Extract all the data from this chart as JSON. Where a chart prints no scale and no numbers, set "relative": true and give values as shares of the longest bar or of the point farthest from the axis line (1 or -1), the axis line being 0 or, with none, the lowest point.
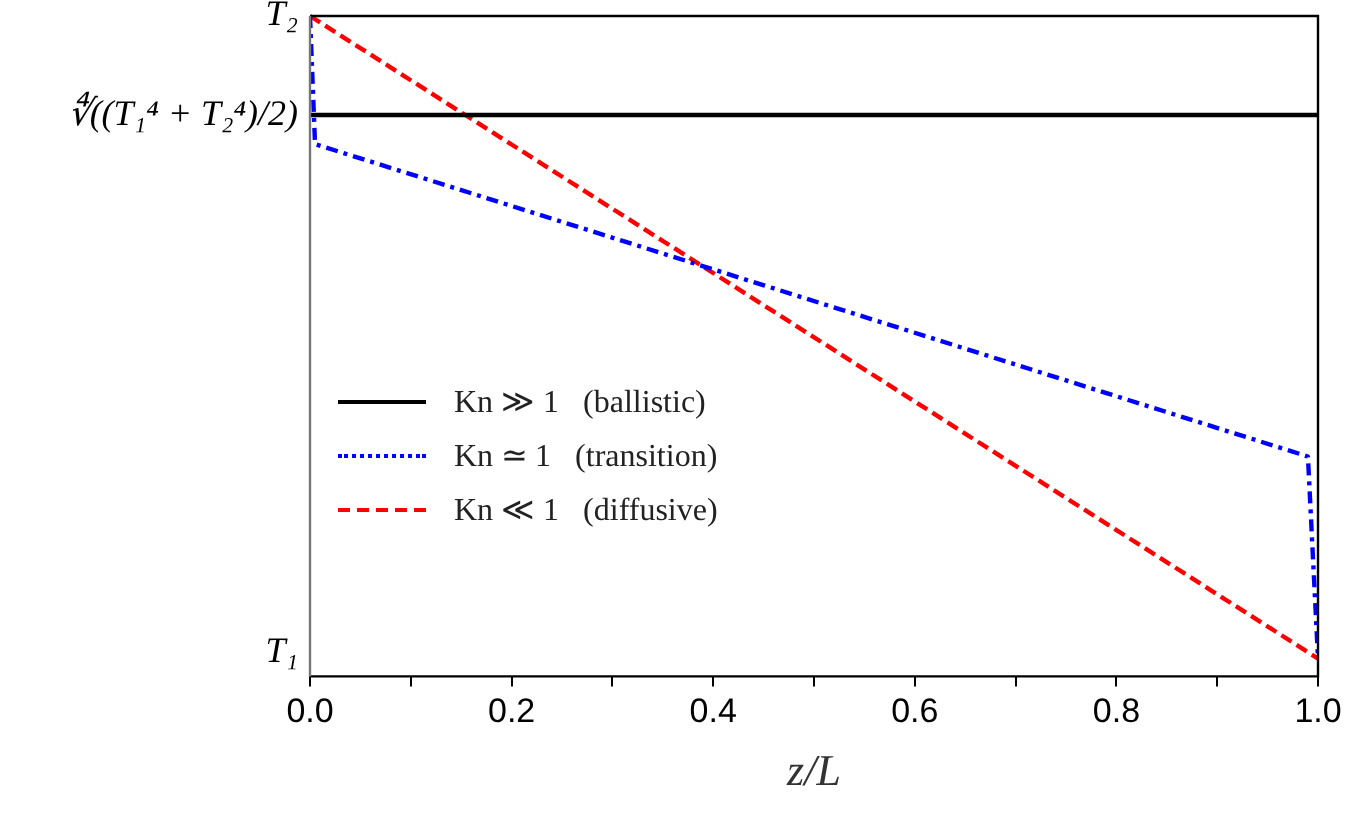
{
  "chart_data": {
    "type": "line",
    "xlabel": "z/L",
    "relative": true,
    "xlim": [
      0,
      1
    ],
    "xticks": [
      {
        "value": 0,
        "label": "0.0"
      },
      {
        "value": 0.1,
        "label": null
      },
      {
        "value": 0.2,
        "label": "0.2"
      },
      {
        "value": 0.3,
        "label": null
      },
      {
        "value": 0.4,
        "label": "0.4"
      },
      {
        "value": 0.5,
        "label": null
      },
      {
        "value": 0.6,
        "label": "0.6"
      },
      {
        "value": 0.7,
        "label": null
      },
      {
        "value": 0.8,
        "label": "0.8"
      },
      {
        "value": 0.9,
        "label": null
      },
      {
        "value": 1,
        "label": "1.0"
      }
    ],
    "annotations": [
      {
        "text": "T₂",
        "x": 0,
        "y": 1
      },
      {
        "text": "∜((T₁⁴ + T₂⁴)/2)",
        "x": 0,
        "y": 0.85
      },
      "T₁"
    ],
    "grid": false,
    "legend": "bottom left",
    "marker": "none",
    "series": [
      {
        "name": "Kn ≫ 1   (ballistic)",
        "color": "#000000",
        "line_style": "solid",
        "x": [
          0,
          1
        ],
        "values": [
          0.85,
          0.85
        ]
      },
      {
        "name": "Kn ≃ 1   (transition)",
        "color": "#0000ff",
        "line_style": "dotted",
        "x": [
          0,
          0.005,
          0.99,
          1
        ],
        "values": [
          1,
          0.806,
          0.333,
          0.027
        ]
      },
      {
        "name": "Kn ≪ 1   (diffusive)",
        "color": "#ff0000",
        "line_style": "dashed",
        "x": [
          0,
          1
        ],
        "values": [
          1,
          0.027
        ]
      }
    ]
  }
}
